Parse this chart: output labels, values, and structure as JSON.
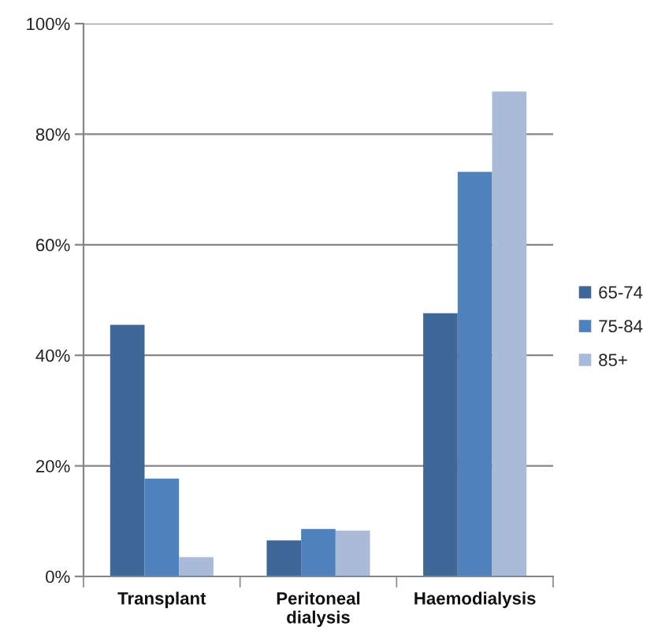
{
  "chart_data": {
    "type": "bar",
    "categories": [
      "Transplant",
      "Peritoneal\ndialysis",
      "Haemodialysis"
    ],
    "series": [
      {
        "name": "65-74",
        "color": "#3f6898",
        "values": [
          45.5,
          6.5,
          47.6
        ]
      },
      {
        "name": "75-84",
        "color": "#4f81bd",
        "values": [
          17.7,
          8.6,
          73.2
        ]
      },
      {
        "name": "85+",
        "color": "#aabad9",
        "values": [
          3.5,
          8.3,
          87.7
        ]
      }
    ],
    "ylim": [
      0,
      100
    ],
    "yticks": [
      {
        "value": 0,
        "label": "0%"
      },
      {
        "value": 20,
        "label": "20%"
      },
      {
        "value": 40,
        "label": "40%"
      },
      {
        "value": 60,
        "label": "60%"
      },
      {
        "value": 80,
        "label": "80%"
      },
      {
        "value": 100,
        "label": "100%"
      }
    ],
    "grid": "y",
    "legend": "right"
  }
}
